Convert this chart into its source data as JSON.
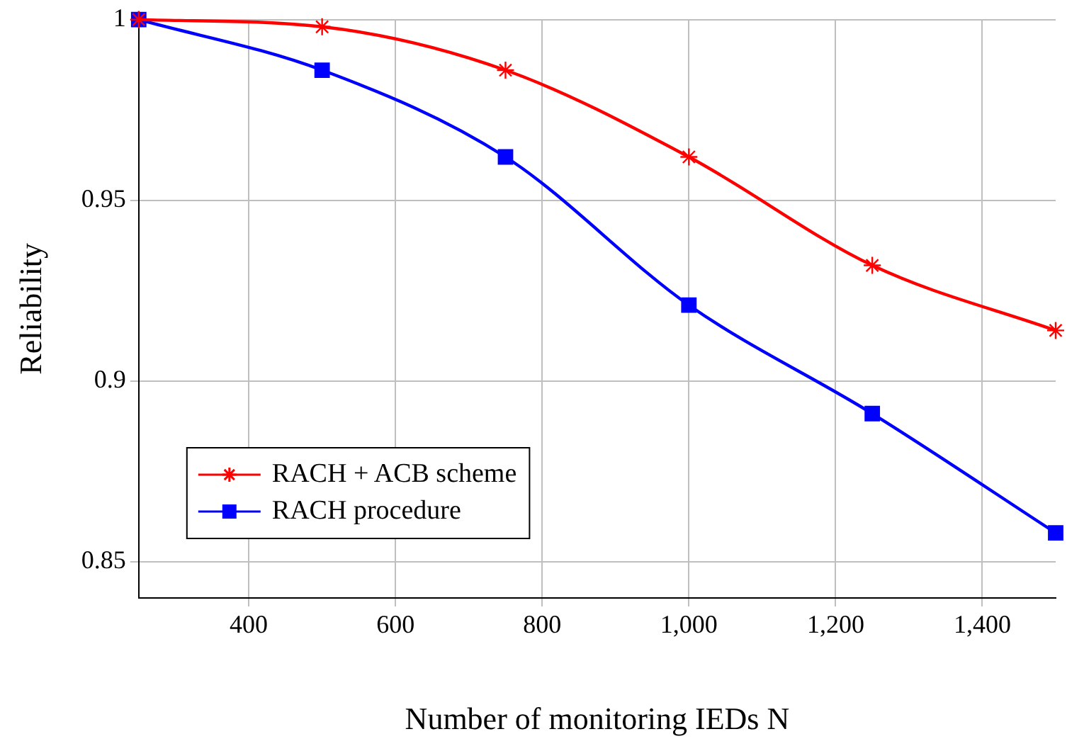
{
  "chart_data": {
    "type": "line",
    "xlabel": "Number of monitoring IEDs N",
    "ylabel": "Reliability",
    "x": [
      250,
      500,
      750,
      1000,
      1250,
      1500
    ],
    "series": [
      {
        "name": "RACH + ACB scheme",
        "color": "#ff0000",
        "marker": "cross",
        "values": [
          1,
          0.998,
          0.986,
          0.962,
          0.932,
          0.914
        ]
      },
      {
        "name": "RACH procedure",
        "color": "#0000ff",
        "marker": "square",
        "values": [
          1,
          0.986,
          0.962,
          0.921,
          0.891,
          0.858
        ]
      }
    ],
    "xlim": [
      250,
      1500
    ],
    "xticks": [
      400,
      600,
      800,
      {
        "value": 1000,
        "label": "1,000"
      },
      {
        "value": 1200,
        "label": "1,200"
      },
      {
        "value": 1400,
        "label": "1,400"
      }
    ],
    "ylim": [
      0.84,
      1
    ],
    "yticks": [
      0.85,
      0.9,
      0.95,
      1
    ],
    "grid": true,
    "legend": "bottom left",
    "line_style": "solid"
  }
}
